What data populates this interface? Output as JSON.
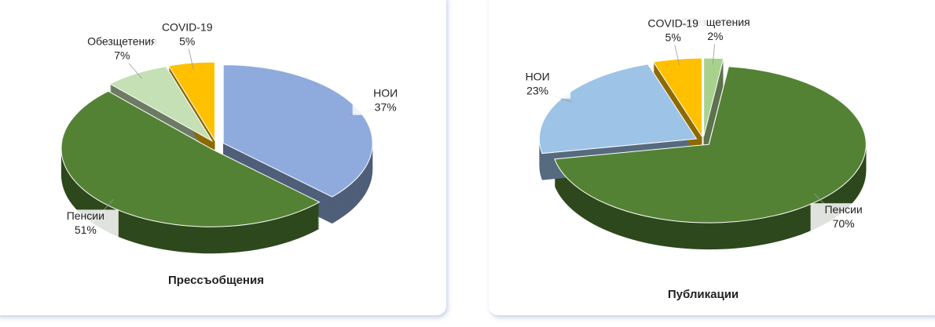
{
  "chart_data": [
    {
      "type": "pie",
      "title": "Прессъобщения",
      "categories": [
        "НОИ",
        "Пенсии",
        "Обезщетения",
        "COVID-19"
      ],
      "values": [
        37,
        51,
        7,
        5
      ],
      "value_labels": [
        "37%",
        "51%",
        "7%",
        "5%"
      ],
      "colors": [
        "#8faadc",
        "#548235",
        "#c5e0b4",
        "#ffc000"
      ]
    },
    {
      "type": "pie",
      "title": "Публикации",
      "categories": [
        "Обезщетения",
        "Пенсии",
        "НОИ",
        "COVID-19"
      ],
      "values": [
        2,
        70,
        23,
        5
      ],
      "value_labels": [
        "2%",
        "70%",
        "23%",
        "5%"
      ],
      "colors": [
        "#a9d18e",
        "#548235",
        "#9dc3e6",
        "#ffc000"
      ]
    }
  ]
}
